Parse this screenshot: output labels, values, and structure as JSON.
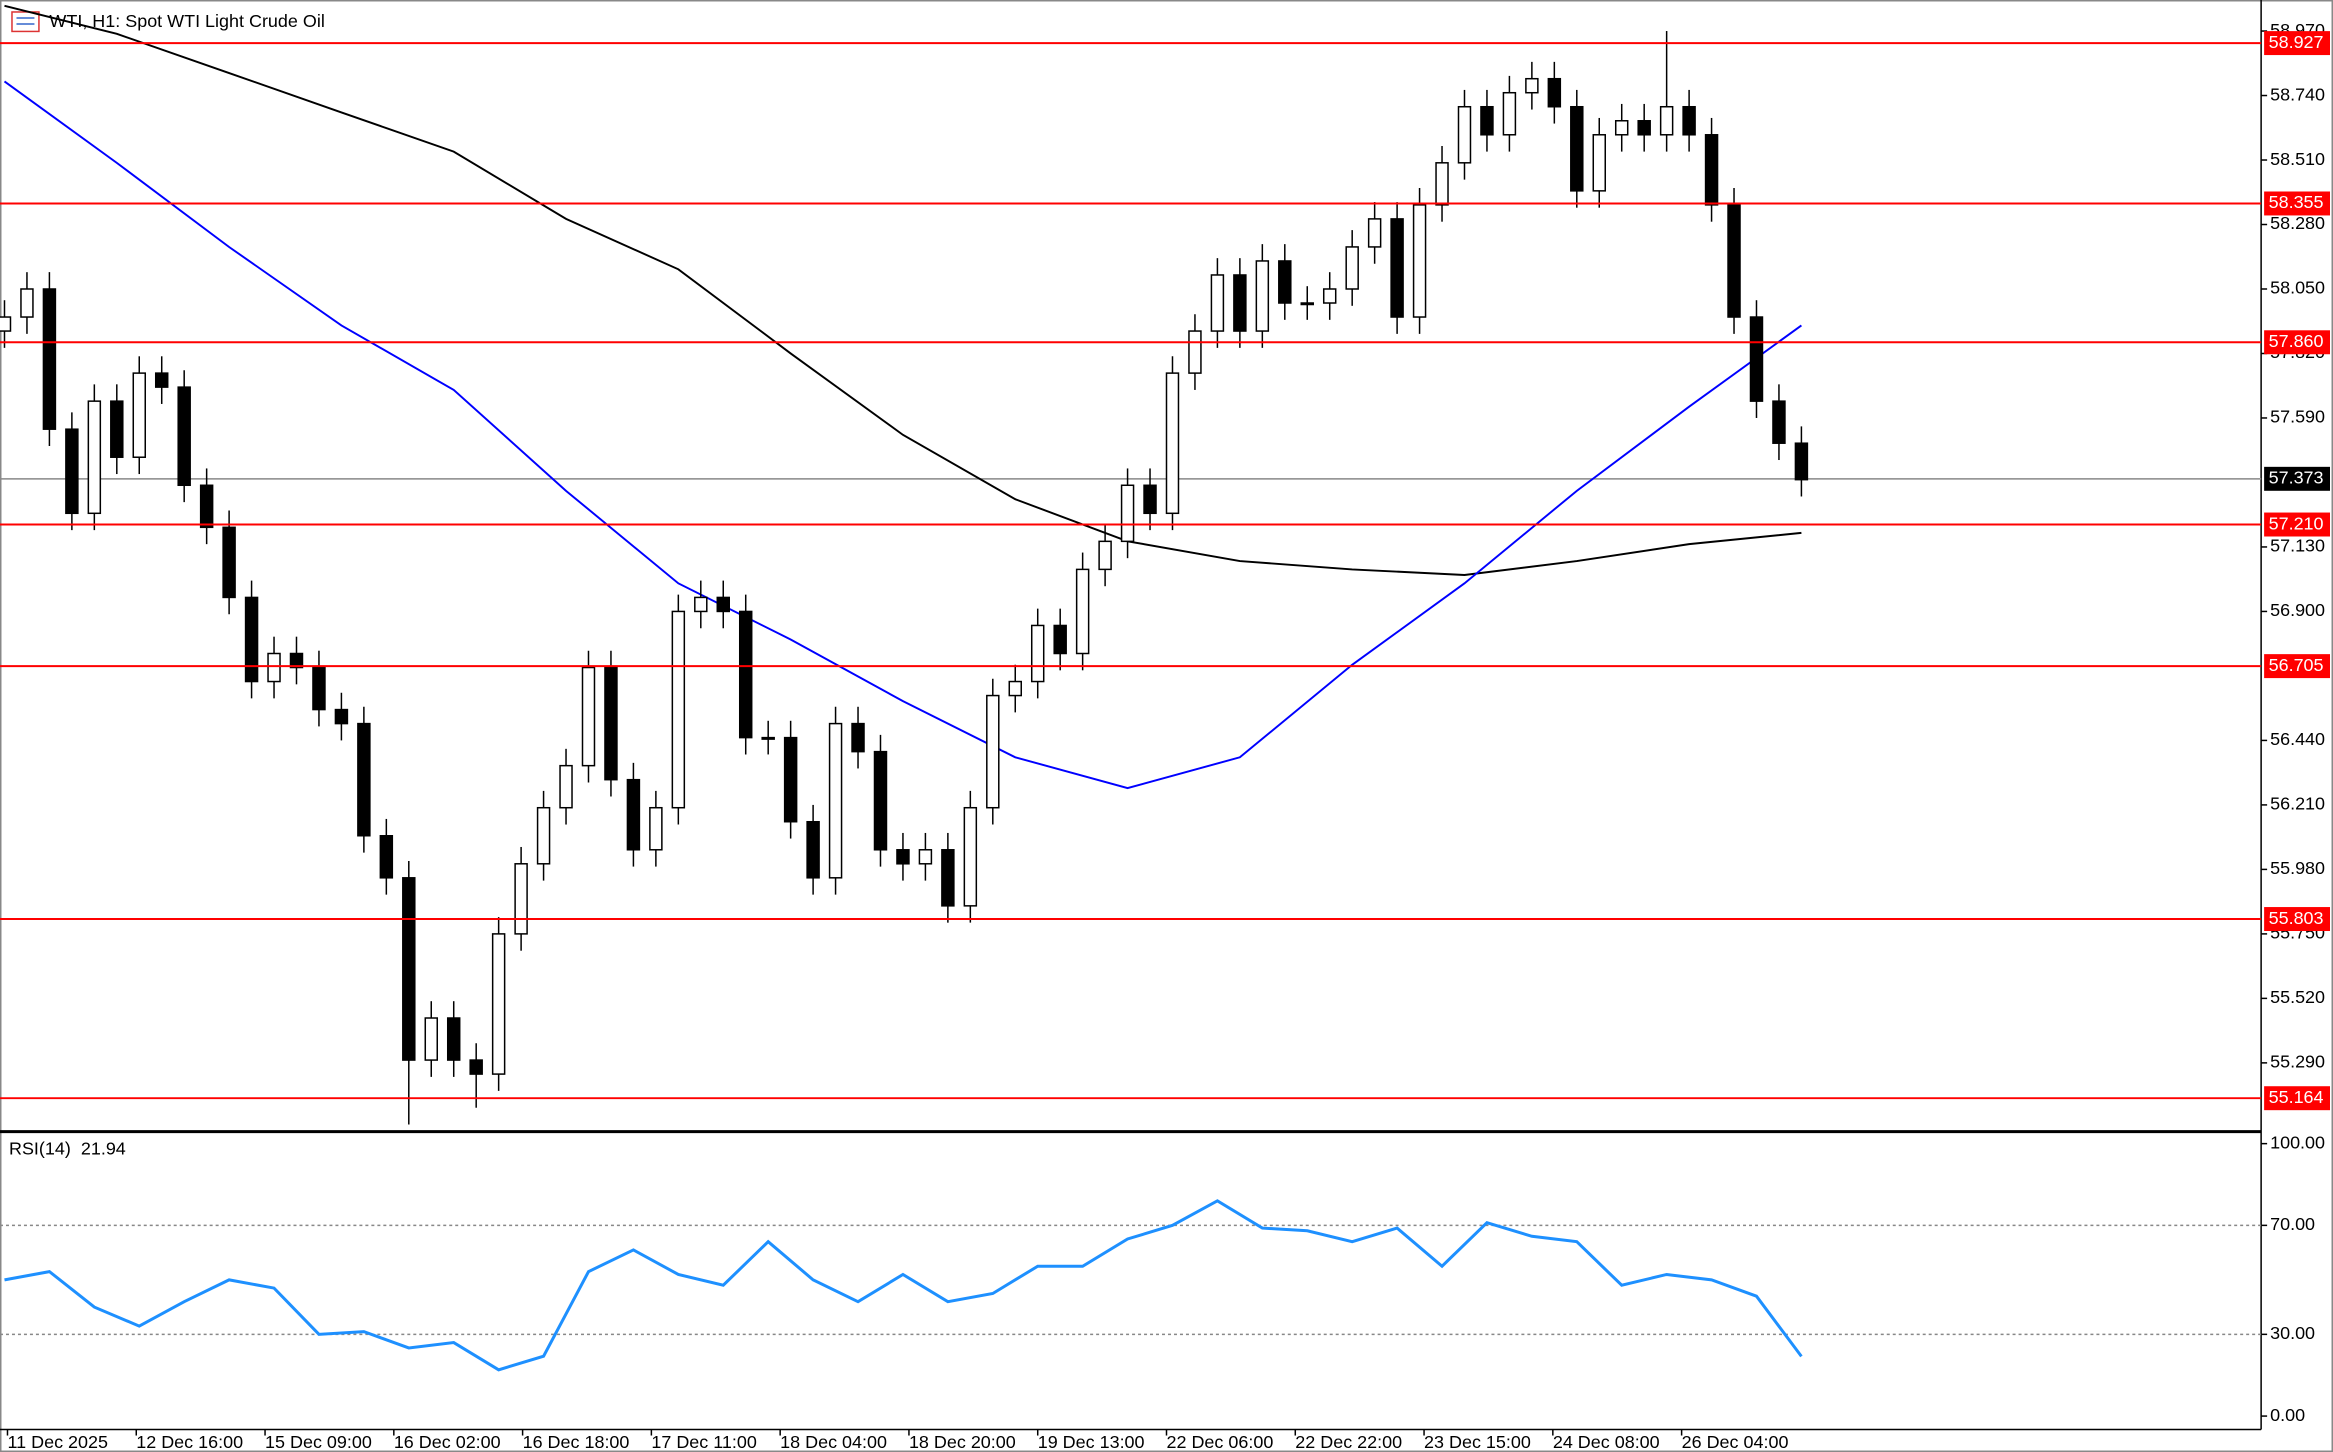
{
  "chart_data": {
    "type": "candlestick",
    "title": "WTI, H1:  Spot WTI Light Crude Oil",
    "up_color": "#ffffff",
    "down_color": "#000000",
    "ylim": [
      55.05,
      59.07
    ],
    "yticks": [
      {
        "value": 58.97,
        "label": "58.970"
      },
      {
        "value": 58.74,
        "label": "58.740"
      },
      {
        "value": 58.51,
        "label": "58.510"
      },
      {
        "value": 58.28,
        "label": "58.280"
      },
      {
        "value": 58.05,
        "label": "58.050"
      },
      {
        "value": 57.82,
        "label": "57.820"
      },
      {
        "value": 57.59,
        "label": "57.590"
      },
      {
        "value": 57.13,
        "label": "57.130"
      },
      {
        "value": 56.9,
        "label": "56.900"
      },
      {
        "value": 56.44,
        "label": "56.440"
      },
      {
        "value": 56.21,
        "label": "56.210"
      },
      {
        "value": 55.98,
        "label": "55.980"
      },
      {
        "value": 55.75,
        "label": "55.750"
      },
      {
        "value": 55.52,
        "label": "55.520"
      },
      {
        "value": 55.29,
        "label": "55.290"
      }
    ],
    "time_labels": [
      "11 Dec 2025",
      "12 Dec 16:00",
      "15 Dec 09:00",
      "16 Dec 02:00",
      "16 Dec 18:00",
      "17 Dec 11:00",
      "18 Dec 04:00",
      "18 Dec 20:00",
      "19 Dec 13:00",
      "22 Dec 06:00",
      "22 Dec 22:00",
      "23 Dec 15:00",
      "24 Dec 08:00",
      "26 Dec 04:00"
    ],
    "candles": [
      [
        57.9,
        58.01,
        57.84,
        57.95
      ],
      [
        57.95,
        58.11,
        57.89,
        58.05
      ],
      [
        58.05,
        58.11,
        57.49,
        57.55
      ],
      [
        57.55,
        57.61,
        57.19,
        57.25
      ],
      [
        57.25,
        57.71,
        57.19,
        57.65
      ],
      [
        57.65,
        57.71,
        57.39,
        57.45
      ],
      [
        57.45,
        57.81,
        57.39,
        57.75
      ],
      [
        57.75,
        57.81,
        57.64,
        57.7
      ],
      [
        57.7,
        57.76,
        57.29,
        57.35
      ],
      [
        57.35,
        57.41,
        57.14,
        57.2
      ],
      [
        57.2,
        57.26,
        56.89,
        56.95
      ],
      [
        56.95,
        57.01,
        56.59,
        56.65
      ],
      [
        56.65,
        56.81,
        56.59,
        56.75
      ],
      [
        56.75,
        56.81,
        56.64,
        56.7
      ],
      [
        56.7,
        56.76,
        56.49,
        56.55
      ],
      [
        56.55,
        56.61,
        56.44,
        56.5
      ],
      [
        56.5,
        56.56,
        56.04,
        56.1
      ],
      [
        56.1,
        56.16,
        55.89,
        55.95
      ],
      [
        55.95,
        56.01,
        55.07,
        55.3
      ],
      [
        55.3,
        55.51,
        55.24,
        55.45
      ],
      [
        55.45,
        55.51,
        55.24,
        55.3
      ],
      [
        55.3,
        55.36,
        55.13,
        55.25
      ],
      [
        55.25,
        55.81,
        55.19,
        55.75
      ],
      [
        55.75,
        56.06,
        55.69,
        56.0
      ],
      [
        56.0,
        56.26,
        55.94,
        56.2
      ],
      [
        56.2,
        56.41,
        56.14,
        56.35
      ],
      [
        56.35,
        56.76,
        56.29,
        56.7
      ],
      [
        56.7,
        56.76,
        56.24,
        56.3
      ],
      [
        56.3,
        56.36,
        55.99,
        56.05
      ],
      [
        56.05,
        56.26,
        55.99,
        56.2
      ],
      [
        56.2,
        56.96,
        56.14,
        56.9
      ],
      [
        56.9,
        57.01,
        56.84,
        56.95
      ],
      [
        56.95,
        57.01,
        56.84,
        56.9
      ],
      [
        56.9,
        56.96,
        56.39,
        56.45
      ],
      [
        56.45,
        56.51,
        56.39,
        56.45
      ],
      [
        56.45,
        56.51,
        56.09,
        56.15
      ],
      [
        56.15,
        56.21,
        55.89,
        55.95
      ],
      [
        55.95,
        56.56,
        55.89,
        56.5
      ],
      [
        56.5,
        56.56,
        56.34,
        56.4
      ],
      [
        56.4,
        56.46,
        55.99,
        56.05
      ],
      [
        56.05,
        56.11,
        55.94,
        56.0
      ],
      [
        56.0,
        56.11,
        55.94,
        56.05
      ],
      [
        56.05,
        56.11,
        55.79,
        55.85
      ],
      [
        55.85,
        56.26,
        55.79,
        56.2
      ],
      [
        56.2,
        56.66,
        56.14,
        56.6
      ],
      [
        56.6,
        56.71,
        56.54,
        56.65
      ],
      [
        56.65,
        56.91,
        56.59,
        56.85
      ],
      [
        56.85,
        56.91,
        56.69,
        56.75
      ],
      [
        56.75,
        57.11,
        56.69,
        57.05
      ],
      [
        57.05,
        57.21,
        56.99,
        57.15
      ],
      [
        57.15,
        57.41,
        57.09,
        57.35
      ],
      [
        57.35,
        57.41,
        57.19,
        57.25
      ],
      [
        57.25,
        57.81,
        57.19,
        57.75
      ],
      [
        57.75,
        57.96,
        57.69,
        57.9
      ],
      [
        57.9,
        58.16,
        57.84,
        58.1
      ],
      [
        58.1,
        58.16,
        57.84,
        57.9
      ],
      [
        57.9,
        58.21,
        57.84,
        58.15
      ],
      [
        58.15,
        58.21,
        57.94,
        58.0
      ],
      [
        58.0,
        58.06,
        57.94,
        58.0
      ],
      [
        58.0,
        58.11,
        57.94,
        58.05
      ],
      [
        58.05,
        58.26,
        57.99,
        58.2
      ],
      [
        58.2,
        58.36,
        58.14,
        58.3
      ],
      [
        58.3,
        58.36,
        57.89,
        57.95
      ],
      [
        57.95,
        58.41,
        57.89,
        58.35
      ],
      [
        58.35,
        58.56,
        58.29,
        58.5
      ],
      [
        58.5,
        58.76,
        58.44,
        58.7
      ],
      [
        58.7,
        58.76,
        58.54,
        58.6
      ],
      [
        58.6,
        58.81,
        58.54,
        58.75
      ],
      [
        58.75,
        58.86,
        58.69,
        58.8
      ],
      [
        58.8,
        58.86,
        58.64,
        58.7
      ],
      [
        58.7,
        58.76,
        58.34,
        58.4
      ],
      [
        58.4,
        58.66,
        58.34,
        58.6
      ],
      [
        58.6,
        58.71,
        58.54,
        58.65
      ],
      [
        58.65,
        58.71,
        58.54,
        58.6
      ],
      [
        58.6,
        58.97,
        58.54,
        58.7
      ],
      [
        58.7,
        58.76,
        58.54,
        58.6
      ],
      [
        58.6,
        58.66,
        58.29,
        58.35
      ],
      [
        58.35,
        58.41,
        57.89,
        57.95
      ],
      [
        57.95,
        58.01,
        57.59,
        57.65
      ],
      [
        57.65,
        57.71,
        57.44,
        57.5
      ],
      [
        57.5,
        57.56,
        57.31,
        57.37
      ]
    ],
    "moving_averages": [
      {
        "color": "#000000",
        "values": [
          59.06,
          58.96,
          58.82,
          58.68,
          58.54,
          58.3,
          58.12,
          57.82,
          57.53,
          57.3,
          57.15,
          57.08,
          57.05,
          57.03,
          57.08,
          57.14,
          57.18
        ]
      },
      {
        "color": "#0000ff",
        "values": [
          58.79,
          58.5,
          58.2,
          57.92,
          57.69,
          57.33,
          57.0,
          56.8,
          56.58,
          56.38,
          56.27,
          56.38,
          56.71,
          57.0,
          57.33,
          57.63,
          57.92
        ]
      }
    ],
    "levels": [
      {
        "value": 58.927,
        "label": "58.927"
      },
      {
        "value": 58.355,
        "label": "58.355"
      },
      {
        "value": 57.86,
        "label": "57.860"
      },
      {
        "value": 57.21,
        "label": "57.210"
      },
      {
        "value": 56.705,
        "label": "56.705"
      },
      {
        "value": 55.803,
        "label": "55.803"
      },
      {
        "value": 55.164,
        "label": "55.164"
      }
    ],
    "level_color": "#ff0000",
    "current_price": 57.373,
    "rsi": {
      "name": "RSI(14)",
      "color": "#1e90ff",
      "ylim": [
        0,
        100
      ],
      "yticks": [
        {
          "value": 100,
          "label": "100.00"
        },
        {
          "value": 70,
          "label": "70.00"
        },
        {
          "value": 30,
          "label": "30.00"
        },
        {
          "value": 0,
          "label": "0.00"
        }
      ],
      "values": [
        50,
        53,
        40,
        33,
        42,
        50,
        47,
        30,
        31,
        25,
        27,
        17,
        22,
        53,
        61,
        52,
        48,
        64,
        50,
        42,
        52,
        42,
        45,
        55,
        55,
        65,
        70,
        79,
        69,
        68,
        64,
        69,
        55,
        71,
        66,
        64,
        48,
        52,
        50,
        44,
        21.94
      ]
    }
  }
}
